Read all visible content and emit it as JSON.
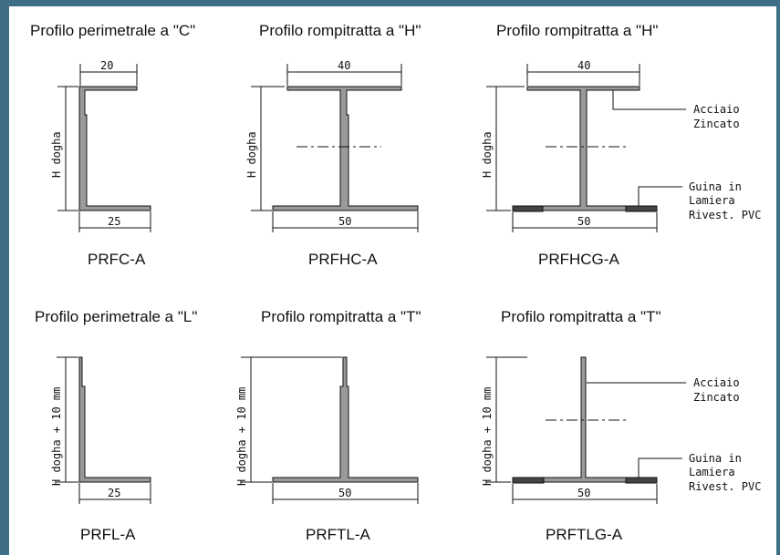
{
  "colors": {
    "frame": "#3f6e87",
    "background": "#ffffff",
    "line": "#111111"
  },
  "panels": [
    {
      "title": "Profilo perimetrale a \"C\"",
      "code": "PRFC-A",
      "top_dim": "20",
      "bottom_dim": "25",
      "height_label": "H dogha"
    },
    {
      "title": "Profilo rompitratta a \"H\"",
      "code": "PRFHC-A",
      "top_dim": "40",
      "bottom_dim": "50",
      "height_label": "H dogha"
    },
    {
      "title": "Profilo rompitratta a \"H\"",
      "code": "PRFHCG-A",
      "top_dim": "40",
      "bottom_dim": "50",
      "height_label": "H dogha",
      "note_top": [
        "Acciaio",
        "Zincato"
      ],
      "note_bottom": [
        "Guina in",
        "Lamiera",
        "Rivest. PVC"
      ]
    },
    {
      "title": "Profilo perimetrale a \"L\"",
      "code": "PRFL-A",
      "bottom_dim": "25",
      "height_label": "H dogha + 10 mm"
    },
    {
      "title": "Profilo rompitratta a \"T\"",
      "code": "PRFTL-A",
      "bottom_dim": "50",
      "height_label": "H dogha + 10 mm"
    },
    {
      "title": "Profilo rompitratta a \"T\"",
      "code": "PRFTLG-A",
      "bottom_dim": "50",
      "height_label": "H dogha + 10 mm",
      "note_top": [
        "Acciaio",
        "Zincato"
      ],
      "note_bottom": [
        "Guina in",
        "Lamiera",
        "Rivest. PVC"
      ]
    }
  ]
}
